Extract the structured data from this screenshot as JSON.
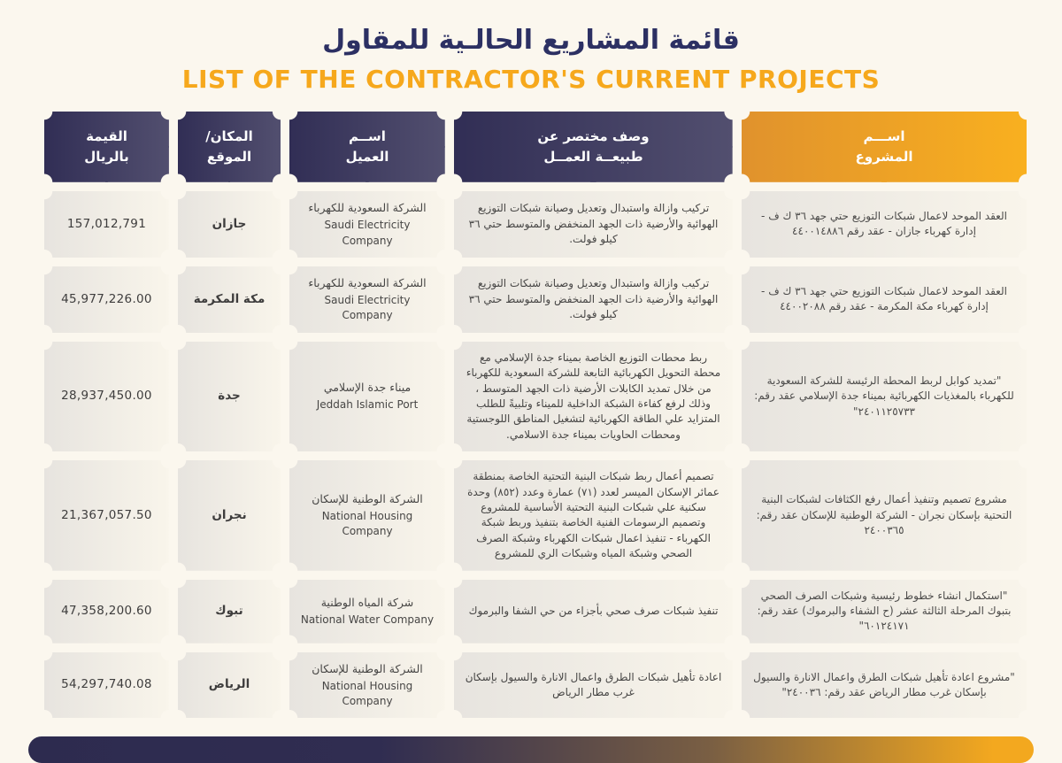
{
  "page": {
    "title_ar": "قائمة المشاريع الحالـية للمقاول",
    "title_en": "LIST OF THE CONTRACTOR'S CURRENT PROJECTS"
  },
  "colors": {
    "background": "#fbf7ee",
    "navy": "#2c3063",
    "gold": "#f6a81c",
    "header_navy_gradient": [
      "#312e55",
      "#524f6f"
    ],
    "header_gold_gradient": [
      "#e0922d",
      "#f9b01f"
    ],
    "cell_gradient": [
      "#e7e4df",
      "#f9f5eb"
    ]
  },
  "table": {
    "headers": [
      {
        "id": "project",
        "label": "اســـم\nالمشروع"
      },
      {
        "id": "description",
        "label": "وصف مختصر عن\nطبيعــة العمــل"
      },
      {
        "id": "client",
        "label": "اســم\nالعميل"
      },
      {
        "id": "location",
        "label": "المكان/\nالموقع"
      },
      {
        "id": "value",
        "label": "القيمة\nبالريال"
      }
    ],
    "rows": [
      {
        "project": "العقد الموحد لاعمال شبكات التوزيع حتي جهد ٣٦ ك ف - إدارة كهرباء جازان - عقد رقم ٤٤٠٠١٤٨٨٦",
        "description": "تركيب وازالة واستبدال وتعديل وصيانة شبكات التوزيع الهوائية والأرضية ذات الجهد المنخفض والمتوسط حتي ٣٦ كيلو فولت.",
        "client_ar": "الشركة السعودية للكهرباء",
        "client_en": "Saudi Electricity Company",
        "location": "جازان",
        "value": "157,012,791"
      },
      {
        "project": "العقد الموحد لاعمال شبكات التوزيع حتي جهد ٣٦ ك ف - إدارة كهرباء مكة المكرمة - عقد رقم ٤٤٠٠٢٠٨٨",
        "description": "تركيب وازالة واستبدال وتعديل وصيانة شبكات التوزيع الهوائية والأرضية ذات الجهد المنخفض والمتوسط حتي ٣٦ كيلو فولت.",
        "client_ar": "الشركة السعودية للكهرباء",
        "client_en": "Saudi Electricity Company",
        "location": "مكة المكرمة",
        "value": "45,977,226.00"
      },
      {
        "project": "\"تمديد كوابل لربط المحطة الرئيسة للشركة السعودية للكهرباء بالمغذيات الكهربائية بميناء جدة الإسلامي عقد رقم: ٢٤٠١١٢٥٧٣٣\"",
        "description": "ربط محطات التوزيع الخاصة بميناء جدة الإسلامي مع محطة التحويل الكهربائية التابعة للشركة السعودية للكهرباء من خلال تمديد الكابلات الأرضية ذات الجهد المتوسط ، وذلك لرفع كفاءة الشبكة الداخلية للميناء وتلبيةً للطلب المتزايد علي الطاقة الكهربائية لتشغيل المناطق اللوجستية ومحطات الحاويات بميناء جدة الاسلامي.",
        "client_ar": "ميناء جدة الإسلامي",
        "client_en": "Jeddah Islamic Port",
        "location": "جدة",
        "value": "28,937,450.00"
      },
      {
        "project": "مشروع تصميم وتنفيذ أعمال رفع الكثافات لشبكات البنية التحتية بإسكان نجران - الشركة الوطنية للإسكان عقد رقم: ٢٤٠٠٣٦٥",
        "description": "تصميم أعمال ربط شبكات البنية التحتية الخاصة بمنطقة عمائر الإسكان الميسر لعدد (٧١) عمارة وعدد (٨٥٢) وحدة سكنية علي شبكات البنية التحتية الأساسية للمشروع وتصميم الرسومات الفنية الخاصة بتنفيذ وربط شبكة الكهرباء - تنفيذ اعمال شبكات الكهرباء وشبكة الصرف الصحي وشبكة المياه وشبكات الري للمشروع",
        "client_ar": "الشركة الوطنية للإسكان",
        "client_en": "National Housing Company",
        "location": "نجران",
        "value": "21,367,057.50"
      },
      {
        "project": "\"استكمال انشاء خطوط رئيسية وشبكات الصرف الصحي بتبوك المرحلة الثالثة عشر (ح الشفاء والبرموك) عقد رقم: ٦٠١٢٤١٧١\"",
        "description": "تنفيذ شبكات صرف صحي بأجزاء من حي الشفا والبرموك",
        "client_ar": "شركة المياه الوطنية",
        "client_en": "National Water Company",
        "location": "تبوك",
        "value": "47,358,200.60"
      },
      {
        "project": "\"مشروع اعادة تأهيل شبكات الطرق واعمال الانارة والسيول بإسكان غرب مطار الرياض عقد رقم: ٢٤٠٠٣٦\"",
        "description": "اعادة تأهيل شبكات الطرق واعمال الانارة والسيول بإسكان غرب مطار الرياض",
        "client_ar": "الشركة الوطنية للإسكان",
        "client_en": "National Housing Company",
        "location": "الرياض",
        "value": "54,297,740.08"
      }
    ]
  }
}
